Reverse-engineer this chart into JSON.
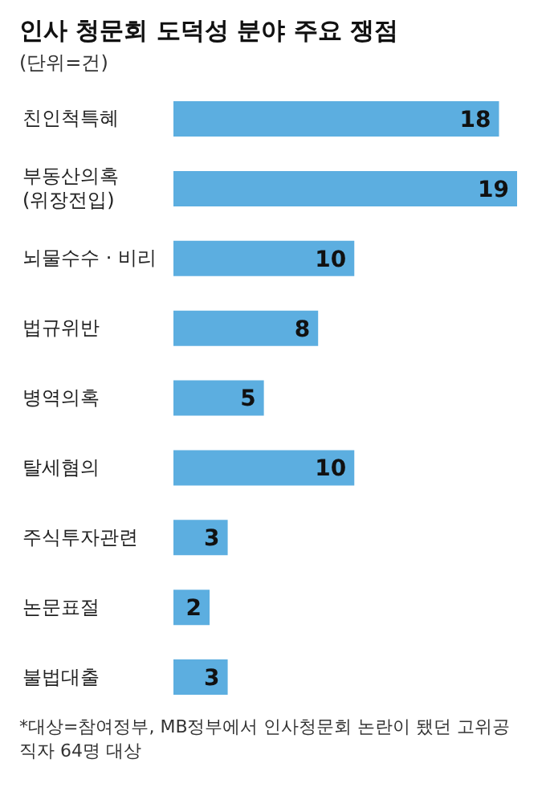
{
  "chart_data": {
    "type": "bar",
    "orientation": "horizontal",
    "title": "인사 청문회 도덕성 분야 주요 쟁점",
    "subtitle": "(단위=건)",
    "categories": [
      "친인척특혜",
      "부동산의혹\n(위장전입)",
      "뇌물수수 · 비리",
      "법규위반",
      "병역의혹",
      "탈세혐의",
      "주식투자관련",
      "논문표절",
      "불법대출"
    ],
    "values": [
      18,
      19,
      10,
      8,
      5,
      10,
      3,
      2,
      3
    ],
    "color": "#5caee0",
    "data_labels": true,
    "annotations": [
      "*대상=참여정부, MB정부에서 인사청문회 논란이 됐던 고위공직자 64명 대상"
    ]
  }
}
